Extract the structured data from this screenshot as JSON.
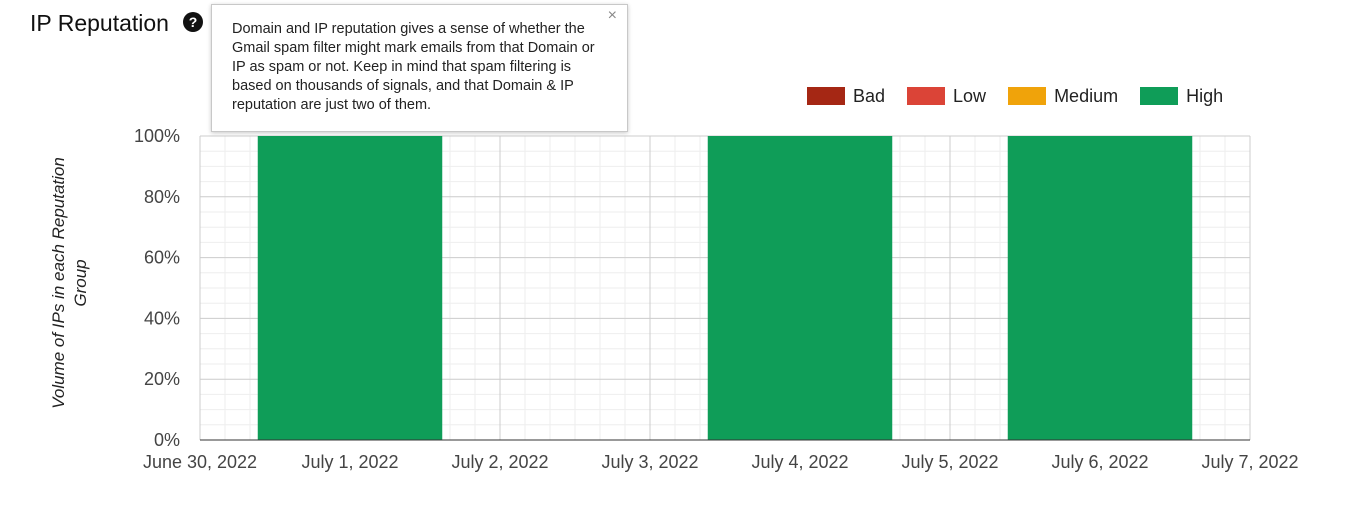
{
  "header": {
    "title": "IP Reputation",
    "help_icon": "question-circle-icon"
  },
  "tooltip": {
    "text": "Domain and IP reputation gives a sense of whether the Gmail spam filter might mark emails from that Domain or IP as spam or not. Keep in mind that spam filtering is based on thousands of signals, and that Domain & IP reputation are just two of them.",
    "close": "×"
  },
  "chart_data": {
    "type": "bar",
    "stacked": true,
    "ylabel": "Volume of IPs in each Reputation Group",
    "xlabel": "",
    "ylim": [
      0,
      100
    ],
    "y_ticks": [
      "0%",
      "20%",
      "40%",
      "60%",
      "80%",
      "100%"
    ],
    "x_ticks": [
      "June 30, 2022",
      "July 1, 2022",
      "July 2, 2022",
      "July 3, 2022",
      "July 4, 2022",
      "July 5, 2022",
      "July 6, 2022",
      "July 7, 2022"
    ],
    "categories": [
      "July 1, 2022",
      "July 2, 2022",
      "July 3, 2022",
      "July 4, 2022",
      "July 5, 2022",
      "July 6, 2022"
    ],
    "series": [
      {
        "name": "Bad",
        "color": "#a52714",
        "values": [
          0,
          0,
          0,
          0,
          0,
          0
        ]
      },
      {
        "name": "Low",
        "color": "#db4437",
        "values": [
          0,
          0,
          0,
          0,
          0,
          0
        ]
      },
      {
        "name": "Medium",
        "color": "#f0a30a",
        "values": [
          0,
          0,
          0,
          0,
          0,
          0
        ]
      },
      {
        "name": "High",
        "color": "#0f9d58",
        "values": [
          100,
          0,
          0,
          100,
          0,
          100
        ]
      }
    ],
    "legend_position": "top-right",
    "grid": true
  }
}
